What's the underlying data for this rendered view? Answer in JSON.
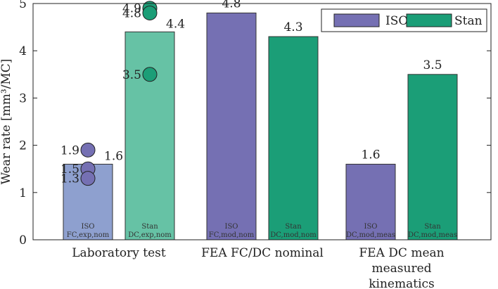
{
  "chart_data": {
    "type": "bar",
    "ylabel": "Wear rate [mm³/MC]",
    "ylim": [
      0,
      5
    ],
    "yticks": [
      "0",
      "1",
      "2",
      "3",
      "4",
      "5"
    ],
    "groups": [
      {
        "label_lines": [
          "Laboratory test"
        ],
        "bars": [
          {
            "series": "ISO",
            "value": 1.6,
            "value_label": "1.6",
            "in_label": [
              "ISO",
              "FC,exp,nom"
            ],
            "color": "#8ea0cf",
            "points": [
              {
                "value": 1.9,
                "label": "1.9"
              },
              {
                "value": 1.5,
                "label": "1.5"
              },
              {
                "value": 1.3,
                "label": "1.3"
              }
            ]
          },
          {
            "series": "Stan",
            "value": 4.4,
            "value_label": "4.4",
            "in_label": [
              "Stan",
              "DC,exp,nom"
            ],
            "color": "#66c2a5",
            "points": [
              {
                "value": 4.9,
                "label": "4.9"
              },
              {
                "value": 4.8,
                "label": "4.8"
              },
              {
                "value": 3.5,
                "label": "3.5"
              }
            ]
          }
        ]
      },
      {
        "label_lines": [
          "FEA FC/DC nominal"
        ],
        "bars": [
          {
            "series": "ISO",
            "value": 4.8,
            "value_label": "4.8",
            "in_label": [
              "ISO",
              "FC,mod,nom"
            ],
            "color": "#7570b3",
            "points": []
          },
          {
            "series": "Stan",
            "value": 4.3,
            "value_label": "4.3",
            "in_label": [
              "Stan",
              "DC,mod,nom"
            ],
            "color": "#1b9e77",
            "points": []
          }
        ]
      },
      {
        "label_lines": [
          "FEA DC mean",
          "measured",
          "kinematics"
        ],
        "bars": [
          {
            "series": "ISO",
            "value": 1.6,
            "value_label": "1.6",
            "in_label": [
              "ISO",
              "DC,mod,meas"
            ],
            "color": "#7570b3",
            "points": []
          },
          {
            "series": "Stan",
            "value": 3.5,
            "value_label": "3.5",
            "in_label": [
              "Stan",
              "DC,mod,meas"
            ],
            "color": "#1b9e77",
            "points": []
          }
        ]
      }
    ],
    "legend": {
      "position": "top-right",
      "entries": [
        {
          "name": "ISO",
          "color": "#7570b3"
        },
        {
          "name": "Stan",
          "color": "#1b9e77"
        }
      ]
    },
    "point_colors": {
      "ISO": "#7570b3",
      "Stan": "#1b9e77"
    }
  }
}
